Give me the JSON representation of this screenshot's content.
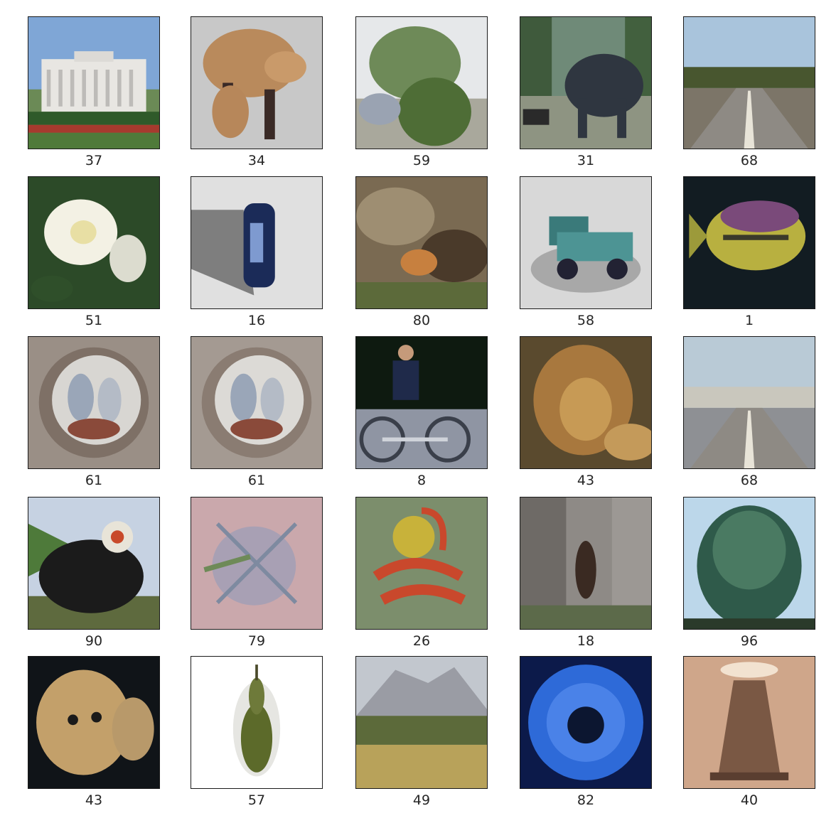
{
  "figure": {
    "images": [
      {
        "label": "37",
        "scene": "white-house",
        "colors": {
          "sky": "#7fa6d6",
          "ground": "#4f7a3a",
          "accent": "#e8e6e2"
        }
      },
      {
        "label": "34",
        "scene": "fox-cutout",
        "colors": {
          "sky": "#c8c8c8",
          "ground": "#c8c8c8",
          "accent": "#b98a5c"
        }
      },
      {
        "label": "59",
        "scene": "tree-outdoor",
        "colors": {
          "sky": "#e6e8ea",
          "ground": "#a9a89c",
          "accent": "#4e6d36"
        }
      },
      {
        "label": "31",
        "scene": "elephant-road",
        "colors": {
          "sky": "#6f8a78",
          "ground": "#8e9482",
          "accent": "#2f3640"
        }
      },
      {
        "label": "68",
        "scene": "road",
        "colors": {
          "sky": "#a9c4dc",
          "ground": "#7c7568",
          "accent": "#48562f"
        }
      },
      {
        "label": "51",
        "scene": "white-flower",
        "colors": {
          "sky": "#2c4a28",
          "ground": "#2f4f2a",
          "accent": "#f3f1e4"
        }
      },
      {
        "label": "16",
        "scene": "can",
        "colors": {
          "sky": "#e0e0e0",
          "ground": "#cfcfcf",
          "accent": "#1b2b58"
        }
      },
      {
        "label": "80",
        "scene": "animal-burrow",
        "colors": {
          "sky": "#7a6a52",
          "ground": "#6a5a40",
          "accent": "#c7803f"
        }
      },
      {
        "label": "58",
        "scene": "toy-truck",
        "colors": {
          "sky": "#d8d8d8",
          "ground": "#bdbdbd",
          "accent": "#3a7a7a"
        }
      },
      {
        "label": "1",
        "scene": "fish",
        "colors": {
          "sky": "#121c22",
          "ground": "#1a2a2a",
          "accent": "#b8b040"
        }
      },
      {
        "label": "61",
        "scene": "plate",
        "colors": {
          "sky": "#9a8f86",
          "ground": "#7e7066",
          "accent": "#d8d6d2"
        }
      },
      {
        "label": "61",
        "scene": "plate",
        "colors": {
          "sky": "#a49a92",
          "ground": "#8a7c72",
          "accent": "#dcdad6"
        }
      },
      {
        "label": "8",
        "scene": "cyclist",
        "colors": {
          "sky": "#0e1a10",
          "ground": "#8f95a3",
          "accent": "#1f2a4a"
        }
      },
      {
        "label": "43",
        "scene": "lion",
        "colors": {
          "sky": "#5a4a2e",
          "ground": "#6e5230",
          "accent": "#c79a55"
        }
      },
      {
        "label": "68",
        "scene": "road-2",
        "colors": {
          "sky": "#b9cad6",
          "ground": "#8e9094",
          "accent": "#c9c7bd"
        }
      },
      {
        "label": "90",
        "scene": "train",
        "colors": {
          "sky": "#c6d2e2",
          "ground": "#5e6a3e",
          "accent": "#1b1b1b"
        }
      },
      {
        "label": "79",
        "scene": "spider",
        "colors": {
          "sky": "#caa8ac",
          "ground": "#b69c9c",
          "accent": "#7e8aa0"
        }
      },
      {
        "label": "26",
        "scene": "crab",
        "colors": {
          "sky": "#7c8e6c",
          "ground": "#6e7c5a",
          "accent": "#c9482c"
        }
      },
      {
        "label": "18",
        "scene": "forest-animal",
        "colors": {
          "sky": "#8e8a86",
          "ground": "#7a7470",
          "accent": "#3a2a22"
        }
      },
      {
        "label": "96",
        "scene": "willow-tree",
        "colors": {
          "sky": "#bcd7ea",
          "ground": "#3b6a55",
          "accent": "#2f5a4a"
        }
      },
      {
        "label": "43",
        "scene": "lion-cub",
        "colors": {
          "sky": "#101418",
          "ground": "#1a1d22",
          "accent": "#c3a06a"
        }
      },
      {
        "label": "57",
        "scene": "pear",
        "colors": {
          "sky": "#ffffff",
          "ground": "#f4f4f4",
          "accent": "#5c6a2a"
        }
      },
      {
        "label": "49",
        "scene": "mountain",
        "colors": {
          "sky": "#c2c7ce",
          "ground": "#b8a25a",
          "accent": "#5c6a3a"
        }
      },
      {
        "label": "82",
        "scene": "blue-flower",
        "colors": {
          "sky": "#0c1a4a",
          "ground": "#12286a",
          "accent": "#2e6ad8"
        }
      },
      {
        "label": "40",
        "scene": "lamp",
        "colors": {
          "sky": "#cfa68a",
          "ground": "#b88a6e",
          "accent": "#7a5844"
        }
      }
    ]
  }
}
